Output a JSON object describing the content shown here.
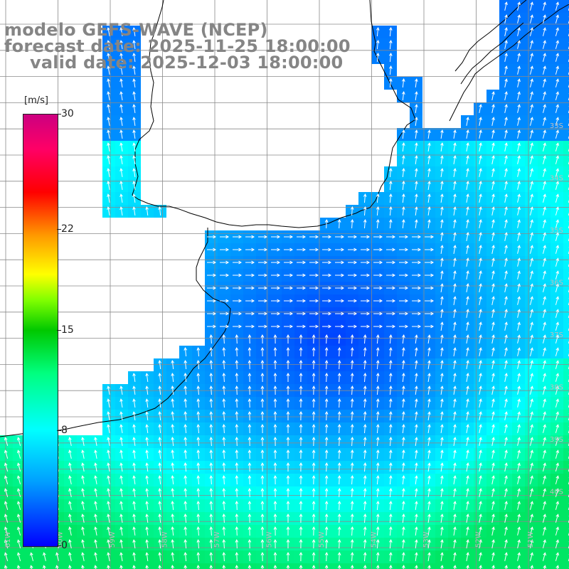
{
  "title": {
    "line1": "modelo GEFS-WAVE (NCEP)",
    "line2": "forecast date: 2025-11-25 18:00:00",
    "line3": "valid date: 2025-12-03 18:00:00"
  },
  "colorbar": {
    "unit": "[m/s]",
    "ticks": [
      "30",
      "22",
      "15",
      "8",
      "0"
    ],
    "tick_values": [
      30,
      22,
      15,
      8,
      0
    ],
    "min": 0,
    "max": 30,
    "colors": [
      "#0000ff",
      "#00a0ff",
      "#00ffff",
      "#00ff80",
      "#00c800",
      "#80ff00",
      "#ffff00",
      "#ff9900",
      "#ff0000",
      "#ff0066",
      "#cc0080"
    ]
  },
  "lat_labels": [
    "33S",
    "34S",
    "35S",
    "36S",
    "37S",
    "38S",
    "39S",
    "40S"
  ],
  "lon_labels": [
    "61W",
    "60W",
    "59W",
    "58W",
    "57W",
    "56W",
    "55W",
    "54W",
    "53W",
    "52W",
    "51W"
  ],
  "colors": {
    "land": "#ffffff",
    "grid": "#8a8a8a",
    "coast": "#000000",
    "arrows": "#ffffff",
    "title": "#858585"
  }
}
